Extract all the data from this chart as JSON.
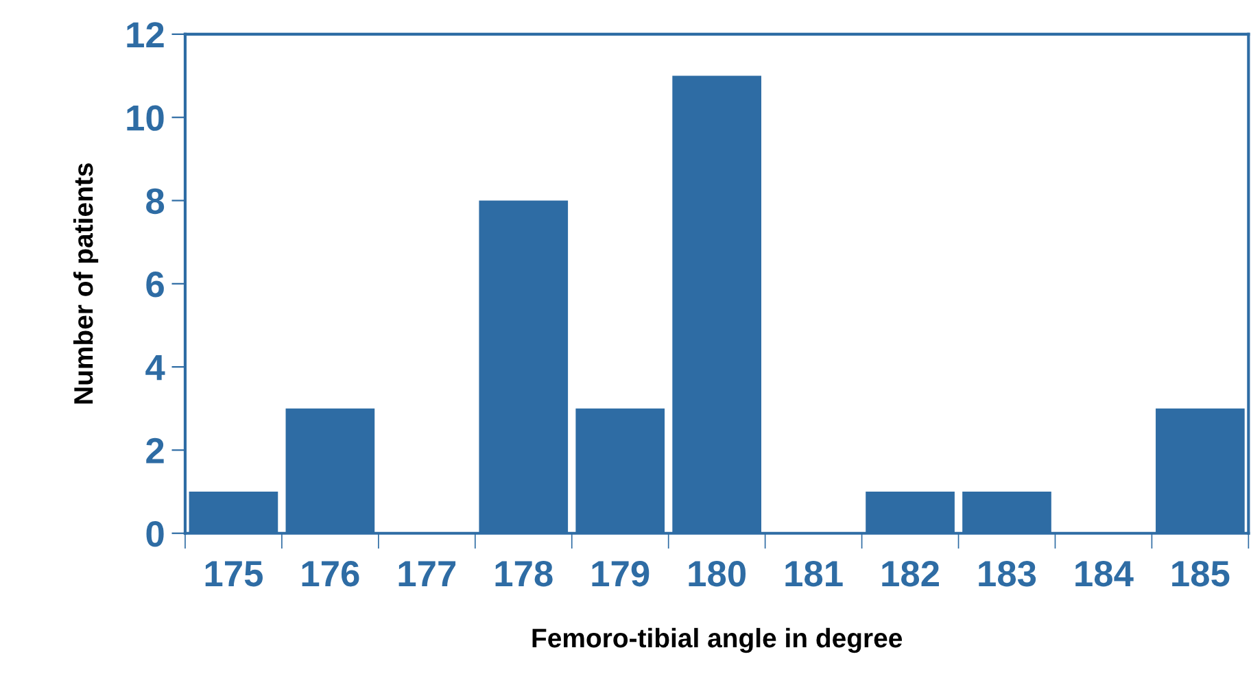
{
  "chart_data": {
    "type": "bar",
    "xlabel": "Femoro-tibial angle in degree",
    "ylabel": "Number of patients",
    "categories": [
      "175",
      "176",
      "177",
      "178",
      "179",
      "180",
      "181",
      "182",
      "183",
      "184",
      "185"
    ],
    "values": [
      1,
      3,
      0,
      8,
      3,
      11,
      0,
      1,
      1,
      0,
      3
    ],
    "color": "#2e6ca4",
    "ylim": [
      0,
      12
    ],
    "yticks": [
      0,
      2,
      4,
      6,
      8,
      10,
      12
    ],
    "grid": false,
    "legend": false
  }
}
